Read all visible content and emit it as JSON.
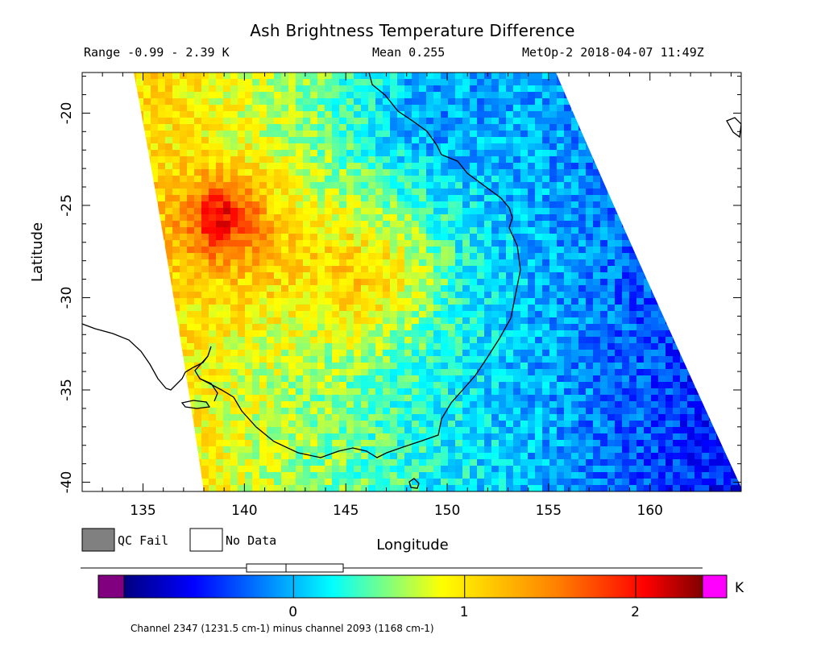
{
  "header": {
    "title": "Ash Brightness Temperature Difference",
    "range": "Range -0.99 - 2.39 K",
    "mean": "Mean 0.255",
    "satellite_time": "MetOp-2 2018-04-07 11:49Z"
  },
  "map": {
    "xlabel": "Longitude",
    "ylabel": "Latitude",
    "lon_range": [
      132,
      164.5
    ],
    "lat_range": [
      -40.5,
      -17.8
    ],
    "lon_ticks": [
      "135",
      "140",
      "145",
      "150",
      "155",
      "160"
    ],
    "lat_ticks": [
      "-20",
      "-25",
      "-30",
      "-35",
      "-40"
    ]
  },
  "legend": {
    "qc_fail_label": "QC Fail",
    "no_data_label": "No Data",
    "qc_fail_color": "#808080",
    "no_data_color": "#ffffff"
  },
  "colorbar": {
    "unit": "K",
    "ticks": [
      "0",
      "1",
      "2"
    ],
    "tick_values": [
      0,
      1,
      2
    ],
    "min": -0.99,
    "max": 2.39,
    "underflow_color": "#800080",
    "overflow_color": "#ff00ff",
    "footnote": "Channel 2347 (1231.5 cm-1) minus channel 2093 (1168 cm-1)"
  }
}
